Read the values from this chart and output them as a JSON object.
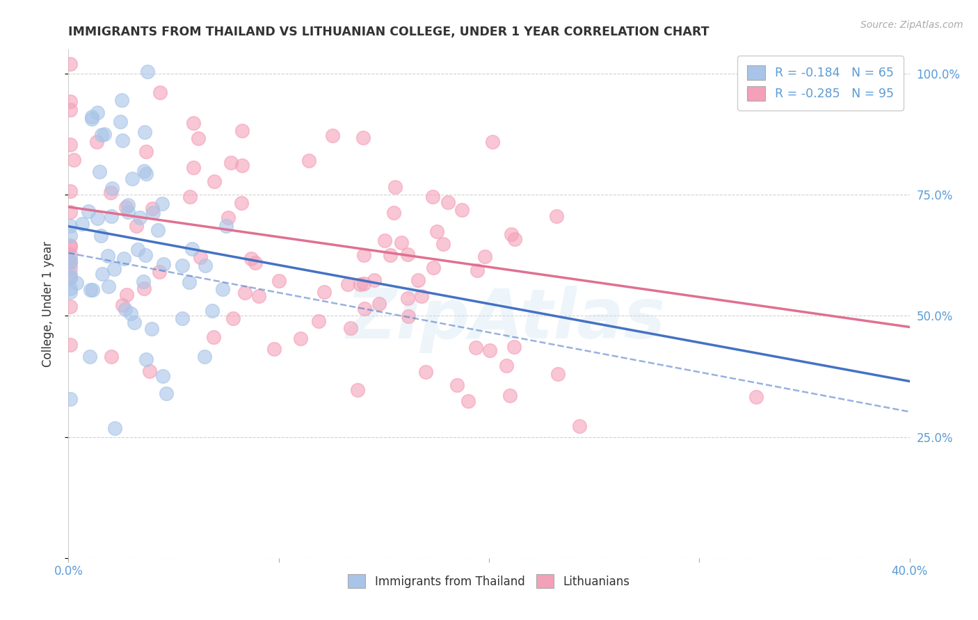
{
  "title": "IMMIGRANTS FROM THAILAND VS LITHUANIAN COLLEGE, UNDER 1 YEAR CORRELATION CHART",
  "source": "Source: ZipAtlas.com",
  "ylabel": "College, Under 1 year",
  "x_min": 0.0,
  "x_max": 0.4,
  "y_min": 0.0,
  "y_max": 1.05,
  "thailand_color": "#a8c4e8",
  "lithuanian_color": "#f4a0b8",
  "thailand_R": -0.184,
  "thailand_N": 65,
  "lithuanian_R": -0.285,
  "lithuanian_N": 95,
  "legend_R_label1": "R = -0.184   N = 65",
  "legend_R_label2": "R = -0.285   N = 95",
  "trend_blue_color": "#4472c4",
  "trend_pink_color": "#e07090",
  "watermark": "ZipAtlas",
  "background_color": "#ffffff",
  "grid_color": "#cccccc",
  "tick_color": "#5b9bd5",
  "label_color": "#333333"
}
